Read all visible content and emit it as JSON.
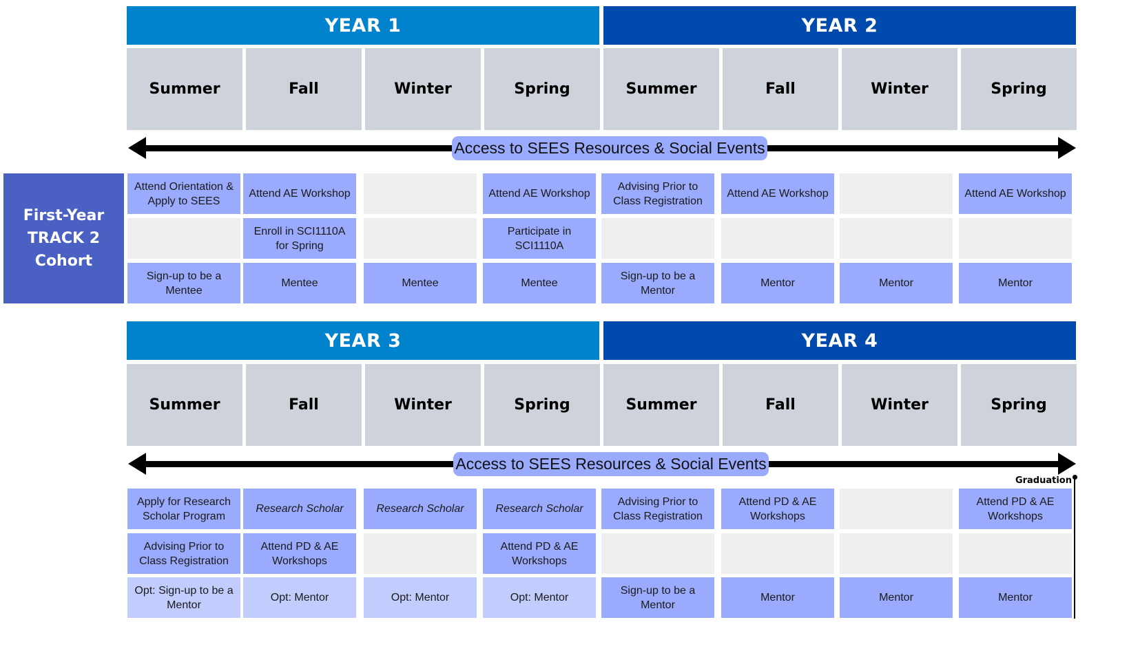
{
  "colors": {
    "year_light": "#0082cc",
    "year_dark": "#004aad",
    "season_bg": "#ced3db",
    "activity": "#9aabfd",
    "optional": "#c2cdfe",
    "empty": "#efefef",
    "cohort": "#4a60c2"
  },
  "cohort_label": [
    "First-Year",
    "TRACK 2",
    "Cohort"
  ],
  "banner": "Access to SEES Resources & Social Events",
  "graduation_label": "Graduation",
  "top": {
    "years": [
      "YEAR 1",
      "YEAR 2"
    ],
    "seasons": [
      "Summer",
      "Fall",
      "Winter",
      "Spring",
      "Summer",
      "Fall",
      "Winter",
      "Spring"
    ],
    "rows": [
      [
        {
          "text": "Attend Orientation & Apply to SEES",
          "style": "blue"
        },
        {
          "text": "Attend AE Workshop",
          "style": "blue"
        },
        {
          "text": "",
          "style": "empty"
        },
        {
          "text": "Attend AE Workshop",
          "style": "blue"
        },
        {
          "text": "Advising Prior to Class Registration",
          "style": "blue"
        },
        {
          "text": "Attend AE Workshop",
          "style": "blue"
        },
        {
          "text": "",
          "style": "empty"
        },
        {
          "text": "Attend AE Workshop",
          "style": "blue"
        }
      ],
      [
        {
          "text": "",
          "style": "empty"
        },
        {
          "text": "Enroll in SCI1110A for Spring",
          "style": "blue"
        },
        {
          "text": "",
          "style": "empty"
        },
        {
          "text": "Participate in SCI1110A",
          "style": "blue"
        },
        {
          "text": "",
          "style": "empty"
        },
        {
          "text": "",
          "style": "empty"
        },
        {
          "text": "",
          "style": "empty"
        },
        {
          "text": "",
          "style": "empty"
        }
      ],
      [
        {
          "text": "Sign-up to be a Mentee",
          "style": "blue"
        },
        {
          "text": "Mentee",
          "style": "blue"
        },
        {
          "text": "Mentee",
          "style": "blue"
        },
        {
          "text": "Mentee",
          "style": "blue"
        },
        {
          "text": "Sign-up to be a Mentor",
          "style": "blue"
        },
        {
          "text": "Mentor",
          "style": "blue"
        },
        {
          "text": "Mentor",
          "style": "blue"
        },
        {
          "text": "Mentor",
          "style": "blue"
        }
      ]
    ]
  },
  "bottom": {
    "years": [
      "YEAR 3",
      "YEAR 4"
    ],
    "seasons": [
      "Summer",
      "Fall",
      "Winter",
      "Spring",
      "Summer",
      "Fall",
      "Winter",
      "Spring"
    ],
    "rows": [
      [
        {
          "text": "Apply for Research Scholar Program",
          "style": "blue"
        },
        {
          "text": "Research Scholar",
          "style": "blue italic"
        },
        {
          "text": "Research Scholar",
          "style": "blue italic"
        },
        {
          "text": "Research Scholar",
          "style": "blue italic"
        },
        {
          "text": "Advising Prior to Class Registration",
          "style": "blue"
        },
        {
          "text": "Attend PD & AE Workshops",
          "style": "blue"
        },
        {
          "text": "",
          "style": "empty"
        },
        {
          "text": "Attend PD & AE Workshops",
          "style": "blue"
        }
      ],
      [
        {
          "text": "Advising Prior to Class Registration",
          "style": "blue"
        },
        {
          "text": "Attend PD & AE Workshops",
          "style": "blue"
        },
        {
          "text": "",
          "style": "empty"
        },
        {
          "text": "Attend PD & AE Workshops",
          "style": "blue"
        },
        {
          "text": "",
          "style": "empty"
        },
        {
          "text": "",
          "style": "empty"
        },
        {
          "text": "",
          "style": "empty"
        },
        {
          "text": "",
          "style": "empty"
        }
      ],
      [
        {
          "text": "Opt: Sign-up to be a Mentor",
          "style": "pale"
        },
        {
          "text": "Opt: Mentor",
          "style": "pale"
        },
        {
          "text": "Opt: Mentor",
          "style": "pale"
        },
        {
          "text": "Opt: Mentor",
          "style": "pale"
        },
        {
          "text": "Sign-up to be a Mentor",
          "style": "blue"
        },
        {
          "text": "Mentor",
          "style": "blue"
        },
        {
          "text": "Mentor",
          "style": "blue"
        },
        {
          "text": "Mentor",
          "style": "blue"
        }
      ]
    ]
  }
}
